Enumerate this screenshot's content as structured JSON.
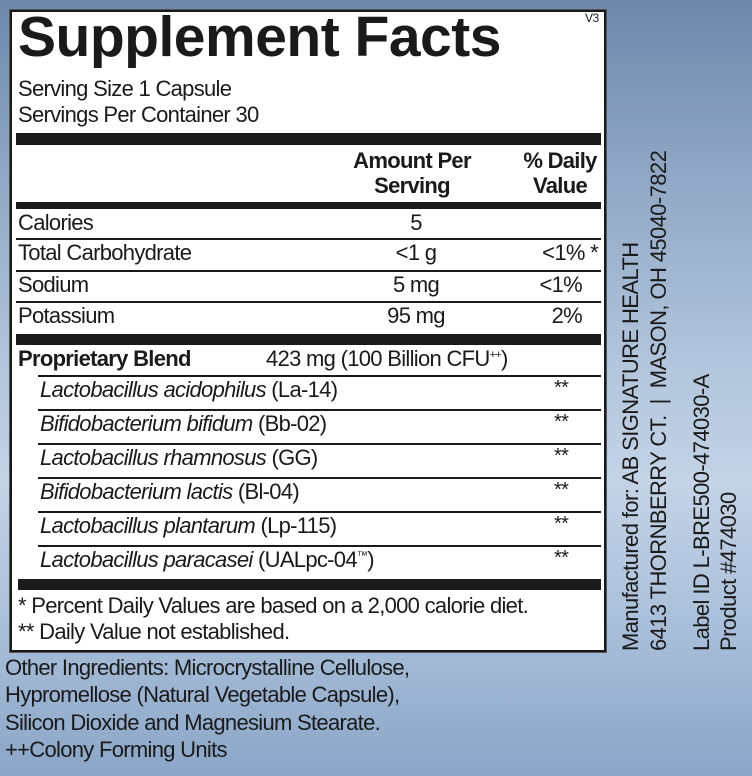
{
  "title": "Supplement Facts",
  "version": "V3",
  "serving_size": "Serving Size 1 Capsule",
  "servings_per_container": "Servings Per Container 30",
  "headers": {
    "amount_line1": "Amount Per",
    "amount_line2": "Serving",
    "dv_line1": "% Daily",
    "dv_line2": "Value"
  },
  "nutrients": [
    {
      "name": "Calories",
      "amount": "5",
      "dv": ""
    },
    {
      "name": "Total Carbohydrate",
      "amount": "<1 g",
      "dv": "<1% *"
    },
    {
      "name": "Sodium",
      "amount": "5 mg",
      "dv": "<1%"
    },
    {
      "name": "Potassium",
      "amount": "95 mg",
      "dv": "2%"
    }
  ],
  "blend": {
    "name": "Proprietary Blend",
    "amount": "423 mg (100 Billion CFU",
    "amount_sup": "++",
    "amount_end": ")"
  },
  "strains": [
    {
      "species": "Lactobacillus acidophilus",
      "strain": " (La-14)",
      "dv": "**"
    },
    {
      "species": "Bifidobacterium bifidum",
      "strain": " (Bb-02)",
      "dv": "**"
    },
    {
      "species": "Lactobacillus rhamnosus",
      "strain": " (GG)",
      "dv": "**"
    },
    {
      "species": "Bifidobacterium lactis",
      "strain": " (Bl-04)",
      "dv": "**"
    },
    {
      "species": "Lactobacillus plantarum",
      "strain": " (Lp-115)",
      "dv": "**"
    },
    {
      "species": "Lactobacillus paracasei",
      "strain": " (UALpc-04",
      "strain_sup": "™",
      "strain_end": ")",
      "dv": "**"
    }
  ],
  "footnotes": [
    "* Percent Daily Values are based on a 2,000 calorie diet.",
    "** Daily Value not established."
  ],
  "other_ingredients": [
    "Other Ingredients: Microcrystalline Cellulose,",
    "Hypromellose (Natural Vegetable Capsule),",
    "Silicon Dioxide and Magnesium Stearate.",
    "++Colony Forming Units"
  ],
  "side_text": [
    "Manufactured for: AB SIGNATURE HEALTH",
    "6413 THORNBERRY CT.  |  MASON, OH 45040-7822",
    "Label ID L-BRE500-474030-A",
    "Product #474030"
  ]
}
